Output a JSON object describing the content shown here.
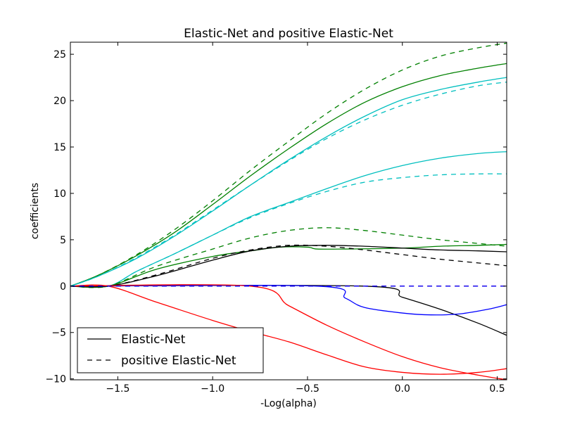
{
  "chart_data": {
    "type": "line",
    "title": "Elastic-Net and positive Elastic-Net",
    "xlabel": "-Log(alpha)",
    "ylabel": "coefficients",
    "xlim": [
      -1.75,
      0.55
    ],
    "ylim": [
      -10.1,
      26.3
    ],
    "xticks": [
      -1.5,
      -1.0,
      -0.5,
      0.0,
      0.5
    ],
    "xtick_labels": [
      "−1.5",
      "−1.0",
      "−0.5",
      "0.0",
      "0.5"
    ],
    "yticks": [
      -10,
      -5,
      0,
      5,
      10,
      15,
      20,
      25
    ],
    "ytick_labels": [
      "−10",
      "−5",
      "0",
      "5",
      "10",
      "15",
      "20",
      "25"
    ],
    "grid": false,
    "legend": {
      "placement": "lower-left",
      "entries": [
        {
          "label": "Elastic-Net",
          "style": "solid"
        },
        {
          "label": "positive Elastic-Net",
          "style": "dashed"
        }
      ]
    },
    "series": [
      {
        "color": "#008000",
        "style": "solid",
        "x": [
          -1.75,
          -1.6,
          -1.4,
          -1.2,
          -1.0,
          -0.8,
          -0.6,
          -0.4,
          -0.2,
          0.0,
          0.2,
          0.4,
          0.55
        ],
        "y": [
          0,
          1.2,
          3.3,
          5.8,
          8.8,
          11.9,
          14.8,
          17.5,
          19.8,
          21.5,
          22.7,
          23.5,
          24.0
        ]
      },
      {
        "color": "#008000",
        "style": "dashed",
        "x": [
          -1.75,
          -1.6,
          -1.4,
          -1.2,
          -1.0,
          -0.8,
          -0.6,
          -0.4,
          -0.2,
          0.0,
          0.2,
          0.4,
          0.55
        ],
        "y": [
          0,
          1.2,
          3.4,
          6.1,
          9.2,
          12.5,
          15.6,
          18.6,
          21.2,
          23.3,
          24.8,
          25.7,
          26.2
        ]
      },
      {
        "color": "#00bfbf",
        "style": "solid",
        "x": [
          -1.75,
          -1.6,
          -1.4,
          -1.2,
          -1.0,
          -0.8,
          -0.6,
          -0.4,
          -0.2,
          0.0,
          0.2,
          0.4,
          0.55
        ],
        "y": [
          0,
          1.1,
          3.0,
          5.4,
          8.1,
          10.9,
          13.6,
          16.1,
          18.3,
          20.1,
          21.2,
          22.0,
          22.5
        ]
      },
      {
        "color": "#00bfbf",
        "style": "dashed",
        "x": [
          -1.75,
          -1.6,
          -1.4,
          -1.2,
          -1.0,
          -0.8,
          -0.6,
          -0.4,
          -0.2,
          0.0,
          0.2,
          0.4,
          0.55
        ],
        "y": [
          0,
          1.1,
          3.1,
          5.5,
          8.2,
          10.9,
          13.5,
          15.9,
          17.9,
          19.5,
          20.7,
          21.6,
          22.0
        ]
      },
      {
        "color": "#00bfbf",
        "style": "solid",
        "x": [
          -1.75,
          -1.55,
          -1.4,
          -1.2,
          -1.0,
          -0.8,
          -0.6,
          -0.4,
          -0.2,
          0.0,
          0.2,
          0.4,
          0.55
        ],
        "y": [
          0,
          0.0,
          1.6,
          3.5,
          5.5,
          7.5,
          9.0,
          10.5,
          11.9,
          13.0,
          13.8,
          14.3,
          14.5
        ]
      },
      {
        "color": "#00bfbf",
        "style": "dashed",
        "x": [
          -1.75,
          -1.55,
          -1.4,
          -1.2,
          -1.0,
          -0.8,
          -0.6,
          -0.4,
          -0.2,
          0.0,
          0.2,
          0.4,
          0.55
        ],
        "y": [
          0,
          0.0,
          1.6,
          3.5,
          5.5,
          7.4,
          8.9,
          10.2,
          11.2,
          11.7,
          12.0,
          12.1,
          12.1
        ]
      },
      {
        "color": "#008000",
        "style": "solid",
        "x": [
          -1.75,
          -1.55,
          -1.3,
          -1.0,
          -0.8,
          -0.65,
          -0.5,
          -0.45,
          -0.3,
          0.0,
          0.2,
          0.4,
          0.55
        ],
        "y": [
          0,
          0.0,
          1.8,
          3.2,
          3.8,
          4.2,
          4.2,
          4.0,
          4.0,
          4.1,
          4.3,
          4.4,
          4.5
        ]
      },
      {
        "color": "#008000",
        "style": "dashed",
        "x": [
          -1.75,
          -1.55,
          -1.3,
          -1.0,
          -0.8,
          -0.6,
          -0.4,
          -0.2,
          0.0,
          0.2,
          0.4,
          0.55
        ],
        "y": [
          0,
          0.0,
          2.1,
          4.0,
          5.2,
          6.0,
          6.3,
          6.0,
          5.5,
          5.0,
          4.6,
          4.3
        ]
      },
      {
        "color": "#000000",
        "style": "solid",
        "x": [
          -1.75,
          -1.55,
          -1.3,
          -1.0,
          -0.8,
          -0.6,
          -0.4,
          -0.2,
          0.0,
          0.2,
          0.4,
          0.55
        ],
        "y": [
          0,
          0.0,
          1.1,
          2.8,
          3.8,
          4.3,
          4.4,
          4.3,
          4.1,
          3.9,
          3.8,
          3.7
        ]
      },
      {
        "color": "#000000",
        "style": "dashed",
        "x": [
          -1.75,
          -1.55,
          -1.3,
          -1.0,
          -0.8,
          -0.6,
          -0.4,
          -0.2,
          0.0,
          0.2,
          0.4,
          0.55
        ],
        "y": [
          0,
          0.0,
          1.2,
          3.0,
          3.9,
          4.4,
          4.3,
          3.9,
          3.4,
          2.9,
          2.5,
          2.2
        ]
      },
      {
        "color": "#000000",
        "style": "solid",
        "x": [
          -1.75,
          -0.2,
          0.0,
          0.2,
          0.4,
          0.55
        ],
        "y": [
          0,
          0.0,
          -1.2,
          -2.5,
          -4.0,
          -5.3
        ]
      },
      {
        "color": "#0000ff",
        "style": "solid",
        "x": [
          -1.75,
          -0.45,
          -0.3,
          -0.2,
          0.0,
          0.15,
          0.3,
          0.45,
          0.55
        ],
        "y": [
          0,
          0.0,
          -1.3,
          -2.3,
          -2.9,
          -3.1,
          -3.0,
          -2.5,
          -2.0
        ]
      },
      {
        "color": "#ff0000",
        "style": "solid",
        "x": [
          -1.75,
          -1.55,
          -1.3,
          -1.0,
          -0.8,
          -0.6,
          -0.4,
          -0.2,
          0.0,
          0.2,
          0.4,
          0.55
        ],
        "y": [
          0,
          0.0,
          -1.7,
          -3.7,
          -4.9,
          -6.0,
          -7.4,
          -8.7,
          -9.3,
          -9.5,
          -9.3,
          -8.9
        ]
      },
      {
        "color": "#ff0000",
        "style": "solid",
        "x": [
          -1.75,
          -0.8,
          -0.6,
          -0.4,
          -0.2,
          0.0,
          0.2,
          0.4,
          0.55
        ],
        "y": [
          0,
          0.0,
          -2.1,
          -4.2,
          -6.0,
          -7.6,
          -8.8,
          -9.6,
          -10.1
        ]
      },
      {
        "color": "#ff0000",
        "style": "dashed",
        "x": [
          -1.75,
          0.55
        ],
        "y": [
          0,
          0
        ]
      },
      {
        "color": "#0000ff",
        "style": "dashed",
        "x": [
          -1.75,
          0.55
        ],
        "y": [
          0,
          0
        ]
      }
    ]
  }
}
